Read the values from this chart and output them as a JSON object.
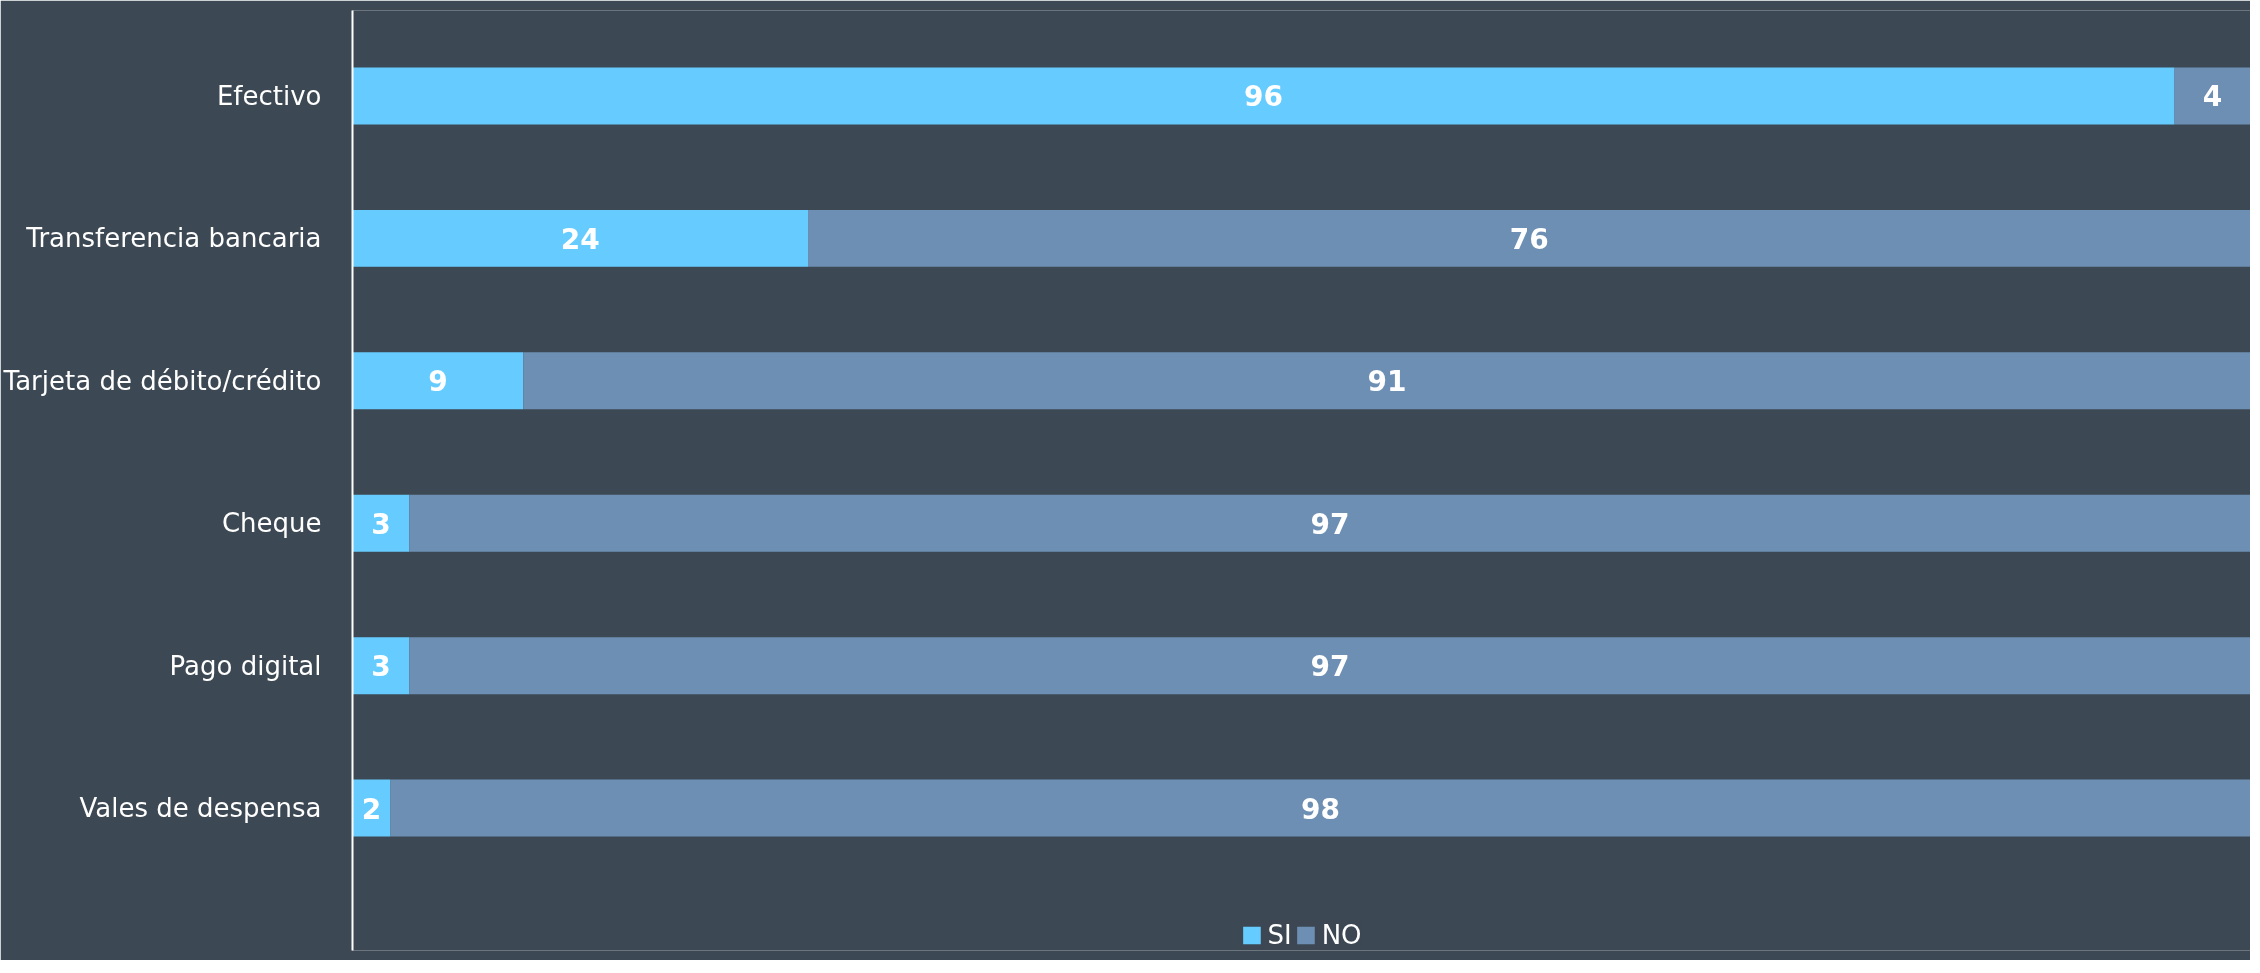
{
  "chart_data": {
    "type": "bar",
    "orientation": "horizontal",
    "stacked": true,
    "categories": [
      "Efectivo",
      "Transferencia bancaria",
      "Tarjeta de débito/crédito",
      "Cheque",
      "Pago digital",
      "Vales de despensa"
    ],
    "series": [
      {
        "name": "SI",
        "color": "#66ccff",
        "values": [
          96,
          24,
          9,
          3,
          3,
          2
        ]
      },
      {
        "name": "NO",
        "color": "#6d8fb3",
        "values": [
          4,
          76,
          91,
          97,
          97,
          98
        ]
      }
    ],
    "xlim": [
      0,
      100
    ],
    "data_labels": true,
    "legend": "bottom",
    "grid": false,
    "tick_labels": "y"
  }
}
